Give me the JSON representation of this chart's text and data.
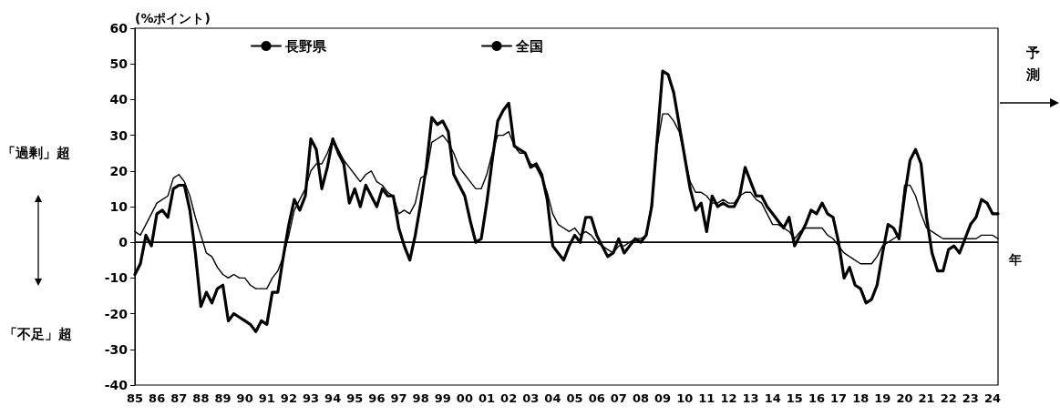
{
  "chart_data": {
    "type": "line",
    "ylabel": "(%ポイント)",
    "xlabel": "年",
    "xlim": [
      1985,
      2024.25
    ],
    "x": [
      1985,
      1985.25,
      1985.5,
      1985.75,
      1986,
      1986.25,
      1986.5,
      1986.75,
      1987,
      1987.25,
      1987.5,
      1987.75,
      1988,
      1988.25,
      1988.5,
      1988.75,
      1989,
      1989.25,
      1989.5,
      1989.75,
      1990,
      1990.25,
      1990.5,
      1990.75,
      1991,
      1991.25,
      1991.5,
      1991.75,
      1992,
      1992.25,
      1992.5,
      1992.75,
      1993,
      1993.25,
      1993.5,
      1993.75,
      1994,
      1994.25,
      1994.5,
      1994.75,
      1995,
      1995.25,
      1995.5,
      1995.75,
      1996,
      1996.25,
      1996.5,
      1996.75,
      1997,
      1997.25,
      1997.5,
      1997.75,
      1998,
      1998.25,
      1998.5,
      1998.75,
      1999,
      1999.25,
      1999.5,
      1999.75,
      2000,
      2000.25,
      2000.5,
      2000.75,
      2001,
      2001.25,
      2001.5,
      2001.75,
      2002,
      2002.25,
      2002.5,
      2002.75,
      2003,
      2003.25,
      2003.5,
      2003.75,
      2004,
      2004.25,
      2004.5,
      2004.75,
      2005,
      2005.25,
      2005.5,
      2005.75,
      2006,
      2006.25,
      2006.5,
      2006.75,
      2007,
      2007.25,
      2007.5,
      2007.75,
      2008,
      2008.25,
      2008.5,
      2008.75,
      2009,
      2009.25,
      2009.5,
      2009.75,
      2010,
      2010.25,
      2010.5,
      2010.75,
      2011,
      2011.25,
      2011.5,
      2011.75,
      2012,
      2012.25,
      2012.5,
      2012.75,
      2013,
      2013.25,
      2013.5,
      2013.75,
      2014,
      2014.25,
      2014.5,
      2014.75,
      2015,
      2015.25,
      2015.5,
      2015.75,
      2016,
      2016.25,
      2016.5,
      2016.75,
      2017,
      2017.25,
      2017.5,
      2017.75,
      2018,
      2018.25,
      2018.5,
      2018.75,
      2019,
      2019.25,
      2019.5,
      2019.75,
      2020,
      2020.25,
      2020.5,
      2020.75,
      2021,
      2021.25,
      2021.5,
      2021.75,
      2022,
      2022.25,
      2022.5,
      2022.75,
      2023,
      2023.25,
      2023.5,
      2023.75,
      2024,
      2024.25
    ],
    "xticks": [
      {
        "value": 1985,
        "label": "85"
      },
      {
        "value": 1986,
        "label": "86"
      },
      {
        "value": 1987,
        "label": "87"
      },
      {
        "value": 1988,
        "label": "88"
      },
      {
        "value": 1989,
        "label": "89"
      },
      {
        "value": 1990,
        "label": "90"
      },
      {
        "value": 1991,
        "label": "91"
      },
      {
        "value": 1992,
        "label": "92"
      },
      {
        "value": 1993,
        "label": "93"
      },
      {
        "value": 1994,
        "label": "94"
      },
      {
        "value": 1995,
        "label": "95"
      },
      {
        "value": 1996,
        "label": "96"
      },
      {
        "value": 1997,
        "label": "97"
      },
      {
        "value": 1998,
        "label": "98"
      },
      {
        "value": 1999,
        "label": "99"
      },
      {
        "value": 2000,
        "label": "00"
      },
      {
        "value": 2001,
        "label": "01"
      },
      {
        "value": 2002,
        "label": "02"
      },
      {
        "value": 2003,
        "label": "03"
      },
      {
        "value": 2004,
        "label": "04"
      },
      {
        "value": 2005,
        "label": "05"
      },
      {
        "value": 2006,
        "label": "06"
      },
      {
        "value": 2007,
        "label": "07"
      },
      {
        "value": 2008,
        "label": "08"
      },
      {
        "value": 2009,
        "label": "09"
      },
      {
        "value": 2010,
        "label": "10"
      },
      {
        "value": 2011,
        "label": "11"
      },
      {
        "value": 2012,
        "label": "12"
      },
      {
        "value": 2013,
        "label": "13"
      },
      {
        "value": 2014,
        "label": "14"
      },
      {
        "value": 2015,
        "label": "15"
      },
      {
        "value": 2016,
        "label": "16"
      },
      {
        "value": 2017,
        "label": "17"
      },
      {
        "value": 2018,
        "label": "18"
      },
      {
        "value": 2019,
        "label": "19"
      },
      {
        "value": 2020,
        "label": "20"
      },
      {
        "value": 2021,
        "label": "21"
      },
      {
        "value": 2022,
        "label": "22"
      },
      {
        "value": 2023,
        "label": "23"
      },
      {
        "value": 2024,
        "label": "24"
      }
    ],
    "ylim": [
      -40,
      60
    ],
    "yticks": [
      -40,
      -30,
      -20,
      -10,
      0,
      10,
      20,
      30,
      40,
      50,
      60
    ],
    "grid": false,
    "legend": "top",
    "marker": "none",
    "line_style": "solid",
    "ref_lines": [
      {
        "axis": "y",
        "value": 0,
        "color": "#000000"
      }
    ],
    "annotations": [
      "「過剰」超",
      "「不足」超",
      "予測"
    ],
    "series": [
      {
        "name": "長野県",
        "color": "#000000",
        "values": [
          -9,
          -6,
          2,
          -1,
          8,
          9,
          7,
          15,
          16,
          16,
          9,
          -3,
          -18,
          -14,
          -17,
          -13,
          -12,
          -22,
          -20,
          -21,
          -22,
          -23,
          -25,
          -22,
          -23,
          -14,
          -14,
          -4,
          5,
          12,
          9,
          13,
          29,
          26,
          15,
          21,
          29,
          25,
          22,
          11,
          15,
          10,
          16,
          13,
          10,
          15,
          13,
          13,
          4,
          -1,
          -5,
          2,
          11,
          21,
          35,
          33,
          34,
          31,
          19,
          16,
          13,
          6,
          0,
          1,
          11,
          23,
          34,
          37,
          39,
          27,
          26,
          25,
          21,
          22,
          19,
          12,
          -1,
          -3,
          -5,
          -1,
          2,
          0,
          7,
          7,
          2,
          -1,
          -4,
          -3,
          1,
          -3,
          -1,
          1,
          0,
          2,
          10,
          29,
          48,
          47,
          42,
          33,
          24,
          15,
          9,
          11,
          3,
          13,
          10,
          11,
          10,
          10,
          13,
          21,
          17,
          13,
          13,
          10,
          8,
          6,
          4,
          7,
          -1,
          2,
          5,
          9,
          8,
          11,
          8,
          7,
          0,
          -10,
          -7,
          -12,
          -13,
          -17,
          -16,
          -12,
          -3,
          5,
          4,
          1,
          13,
          23,
          26,
          22,
          7,
          -3,
          -8,
          -8,
          -2,
          -1,
          -3,
          1,
          5,
          7,
          12,
          11,
          8,
          8
        ]
      },
      {
        "name": "全国",
        "color": "#000000",
        "values": [
          3,
          2,
          5,
          8,
          11,
          12,
          13,
          18,
          19,
          17,
          13,
          7,
          2,
          -3,
          -4,
          -7,
          -9,
          -10,
          -9,
          -10,
          -10,
          -12,
          -13,
          -13,
          -13,
          -10,
          -8,
          -4,
          2,
          9,
          12,
          15,
          20,
          22,
          22,
          25,
          29,
          26,
          23,
          21,
          19,
          17,
          19,
          20,
          17,
          16,
          14,
          13,
          8,
          9,
          8,
          11,
          18,
          19,
          28,
          29,
          30,
          28,
          25,
          21,
          19,
          17,
          15,
          15,
          19,
          25,
          30,
          30,
          31,
          27,
          25,
          25,
          22,
          21,
          18,
          14,
          8,
          5,
          4,
          3,
          4,
          2,
          3,
          2,
          0,
          -1,
          -2,
          -3,
          -1,
          -1,
          0,
          1,
          1,
          2,
          11,
          27,
          36,
          36,
          34,
          31,
          24,
          17,
          14,
          14,
          13,
          11,
          11,
          12,
          11,
          11,
          13,
          14,
          14,
          12,
          11,
          8,
          5,
          5,
          4,
          3,
          1,
          3,
          4,
          4,
          4,
          4,
          2,
          1,
          -1,
          -3,
          -4,
          -5,
          -6,
          -6,
          -6,
          -4,
          -1,
          0,
          1,
          2,
          16,
          16,
          13,
          8,
          4,
          3,
          2,
          1,
          1,
          1,
          1,
          1,
          1,
          1,
          2,
          2,
          2,
          1
        ]
      }
    ]
  }
}
